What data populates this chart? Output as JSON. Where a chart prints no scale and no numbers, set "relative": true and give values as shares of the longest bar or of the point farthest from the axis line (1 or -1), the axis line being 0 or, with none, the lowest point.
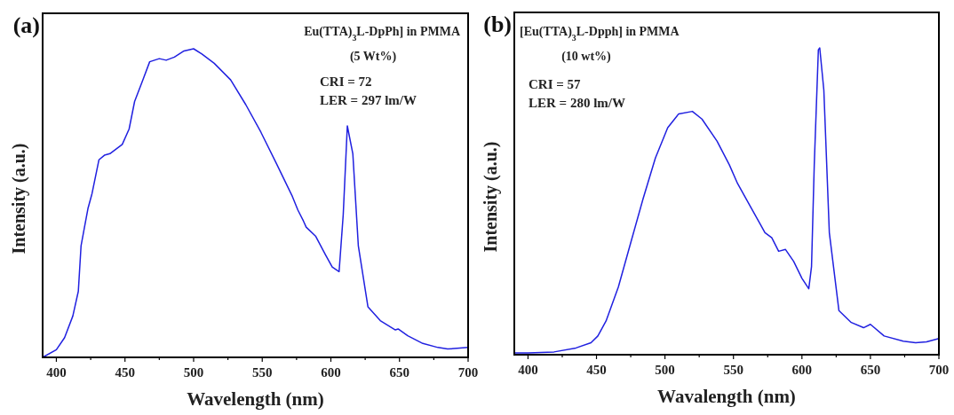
{
  "chart_data": [
    {
      "type": "line",
      "title": "(a)",
      "xlabel": "Wavelength (nm)",
      "ylabel": "Intensity (a.u.)",
      "relative": true,
      "xlim": [
        390,
        700
      ],
      "xticks": [
        400,
        {
          "value": 425,
          "label": null
        },
        450,
        {
          "value": 475,
          "label": null
        },
        500,
        {
          "value": 525,
          "label": null
        },
        550,
        {
          "value": 575,
          "label": null
        },
        600,
        {
          "value": 625,
          "label": null
        },
        650,
        {
          "value": 675,
          "label": null
        },
        700
      ],
      "line_style": "solid",
      "annotations": [
        "Eu(TTA)$_{3}$L-DpPh] in PMMA",
        "(5 Wt%)",
        "CRI = 72",
        "LER = 297 lm/W"
      ],
      "series": [
        {
          "color": "#2020e0",
          "x": [
            390,
            400,
            406,
            412,
            416,
            418,
            423,
            426,
            431,
            435,
            439,
            448,
            453,
            457,
            463,
            468,
            475,
            480,
            486,
            493,
            500,
            506,
            515,
            527,
            538,
            549,
            560,
            572,
            576,
            580,
            582,
            589,
            596,
            601,
            606,
            609,
            612,
            616,
            620,
            627,
            636,
            647,
            649,
            656,
            667,
            678,
            685,
            694,
            700
          ],
          "values": [
            0,
            0.025,
            0.064,
            0.134,
            0.214,
            0.362,
            0.482,
            0.531,
            0.64,
            0.655,
            0.66,
            0.69,
            0.74,
            0.829,
            0.899,
            0.958,
            0.968,
            0.963,
            0.973,
            0.993,
            1,
            0.983,
            0.953,
            0.899,
            0.819,
            0.73,
            0.631,
            0.521,
            0.477,
            0.442,
            0.422,
            0.392,
            0.333,
            0.293,
            0.278,
            0.462,
            0.75,
            0.66,
            0.362,
            0.164,
            0.119,
            0.089,
            0.092,
            0.07,
            0.045,
            0.032,
            0.027,
            0.03,
            0.032
          ]
        }
      ]
    },
    {
      "type": "line",
      "title": "(b)",
      "xlabel": "Wavalength (nm)",
      "ylabel": "Intensity (a.u.)",
      "relative": true,
      "xlim": [
        390,
        700
      ],
      "xticks": [
        400,
        {
          "value": 425,
          "label": null
        },
        450,
        {
          "value": 475,
          "label": null
        },
        500,
        {
          "value": 525,
          "label": null
        },
        550,
        {
          "value": 575,
          "label": null
        },
        600,
        {
          "value": 625,
          "label": null
        },
        650,
        {
          "value": 675,
          "label": null
        },
        700
      ],
      "line_style": "solid",
      "annotations": [
        "[Eu(TTA)$_{3}$L-Dpph] in PMMA",
        "(10 wt%)",
        "CRI = 57",
        "LER = 280 lm/W"
      ],
      "series": [
        {
          "color": "#2020e0",
          "x": [
            390,
            400,
            419,
            435,
            446,
            451,
            457,
            466,
            475,
            484,
            493,
            502,
            510,
            520,
            527,
            538,
            547,
            553,
            562,
            573,
            578,
            583,
            588,
            594,
            600,
            605,
            607,
            609,
            612,
            613,
            616,
            620,
            627,
            636,
            645,
            650,
            660,
            674,
            683,
            691,
            700
          ],
          "values": [
            0.006,
            0.006,
            0.009,
            0.022,
            0.039,
            0.061,
            0.11,
            0.221,
            0.365,
            0.508,
            0.641,
            0.74,
            0.785,
            0.793,
            0.768,
            0.696,
            0.619,
            0.558,
            0.486,
            0.398,
            0.381,
            0.337,
            0.343,
            0.304,
            0.249,
            0.215,
            0.287,
            0.619,
            0.994,
            1,
            0.862,
            0.398,
            0.144,
            0.105,
            0.088,
            0.099,
            0.061,
            0.044,
            0.039,
            0.042,
            0.053
          ]
        }
      ]
    }
  ]
}
